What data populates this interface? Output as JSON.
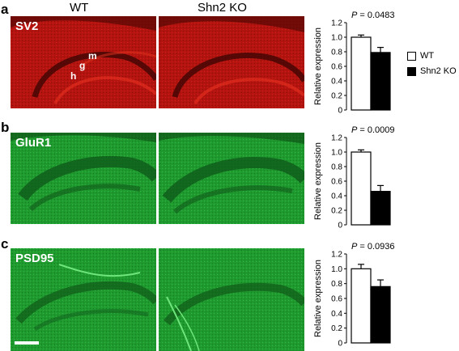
{
  "column_headers": {
    "wt": "WT",
    "ko": "Shn2 KO"
  },
  "legend": {
    "wt": "WT",
    "ko": "Shn2 KO",
    "wt_color": "#ffffff",
    "ko_color": "#000000"
  },
  "panels": [
    {
      "letter": "a",
      "stain": "SV2",
      "tint": "red",
      "regions": {
        "g": "g",
        "m": "m",
        "h": "h"
      }
    },
    {
      "letter": "b",
      "stain": "GluR1",
      "tint": "green"
    },
    {
      "letter": "c",
      "stain": "PSD95",
      "tint": "green"
    }
  ],
  "chart_data": [
    {
      "type": "bar",
      "ylabel": "Relative expression",
      "annotation_prefix": "P",
      "annotation_value": " = 0.0483",
      "categories": [
        "WT",
        "Shn2 KO"
      ],
      "values": [
        1.0,
        0.79
      ],
      "errors": [
        0.03,
        0.07
      ],
      "yticks": [
        "0",
        "0.2",
        "0.4",
        "0.6",
        "0.8",
        "1.0",
        "1.2"
      ],
      "ylim": [
        0,
        1.2
      ]
    },
    {
      "type": "bar",
      "ylabel": "Relative expression",
      "annotation_prefix": "P",
      "annotation_value": " = 0.0009",
      "categories": [
        "WT",
        "Shn2 KO"
      ],
      "values": [
        1.0,
        0.46
      ],
      "errors": [
        0.03,
        0.08
      ],
      "yticks": [
        "0",
        "0.2",
        "0.4",
        "0.6",
        "0.8",
        "1.0",
        "1.2"
      ],
      "ylim": [
        0,
        1.2
      ]
    },
    {
      "type": "bar",
      "ylabel": "Relative expression",
      "annotation_prefix": "P",
      "annotation_value": " = 0.0936",
      "categories": [
        "WT",
        "Shn2 KO"
      ],
      "values": [
        1.0,
        0.76
      ],
      "errors": [
        0.06,
        0.09
      ],
      "yticks": [
        "0",
        "0.2",
        "0.4",
        "0.6",
        "0.8",
        "1.0",
        "1.2"
      ],
      "ylim": [
        0,
        1.2
      ]
    }
  ]
}
